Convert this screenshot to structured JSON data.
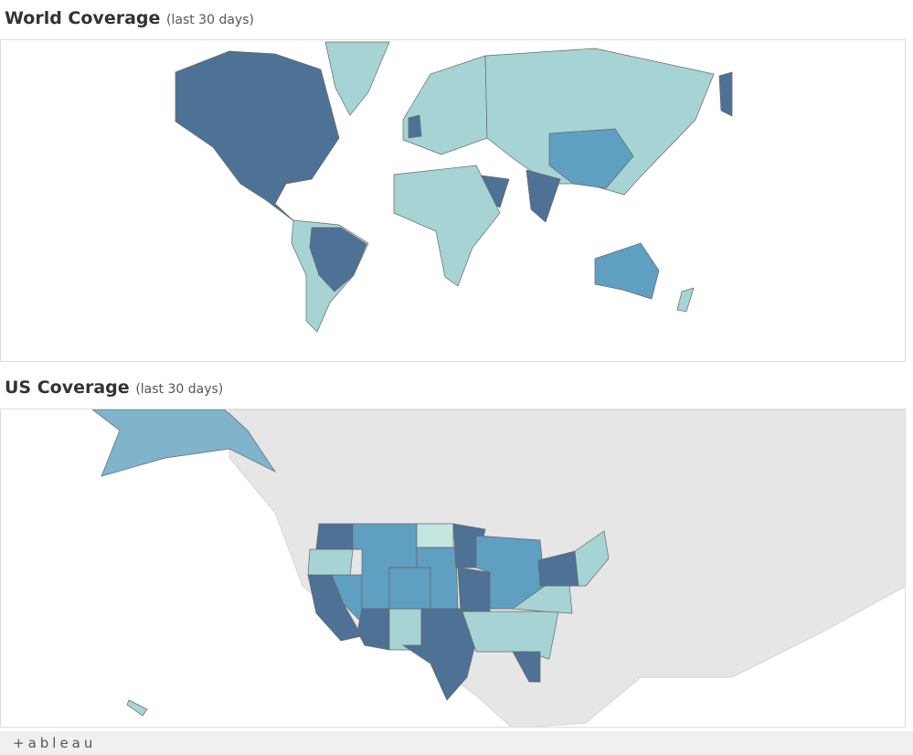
{
  "world": {
    "title": "World Coverage",
    "subtitle": "(last 30 days)"
  },
  "us": {
    "title": "US Coverage",
    "subtitle": "(last 30 days)"
  },
  "footer": {
    "logo": "+ableau"
  }
}
